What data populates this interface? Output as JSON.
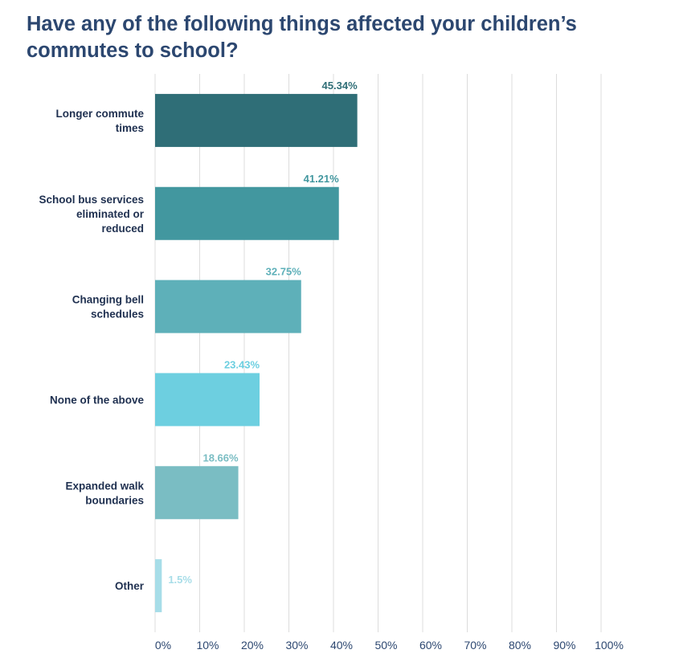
{
  "title": "Have any of the following things affected your children’s commutes to school?",
  "chart_data": {
    "type": "bar",
    "orientation": "horizontal",
    "title": "Have any of the following things affected your children’s commutes to school?",
    "categories": [
      [
        "Longer commute",
        "times"
      ],
      [
        "School bus services",
        "eliminated or",
        "reduced"
      ],
      [
        "Changing bell",
        "schedules"
      ],
      [
        "None of the above"
      ],
      [
        "Expanded walk",
        "boundaries"
      ],
      [
        "Other"
      ]
    ],
    "values": [
      45.34,
      41.21,
      32.75,
      23.43,
      18.66,
      1.5
    ],
    "value_labels": [
      "45.34%",
      "41.21%",
      "32.75%",
      "23.43%",
      "18.66%",
      "1.5%"
    ],
    "colors": [
      "#2f6e77",
      "#42979f",
      "#5eb0b9",
      "#6dcfe0",
      "#7abdc3",
      "#a7dde8"
    ],
    "label_colors": [
      "#2f6e77",
      "#42979f",
      "#5eb0b9",
      "#6dcfe0",
      "#7abdc3",
      "#a7dde8"
    ],
    "xlim": [
      0,
      100
    ],
    "x_ticks": [
      "0%",
      "10%",
      "20%",
      "30%",
      "40%",
      "50%",
      "60%",
      "70%",
      "80%",
      "90%",
      "100%"
    ],
    "grid": true
  }
}
